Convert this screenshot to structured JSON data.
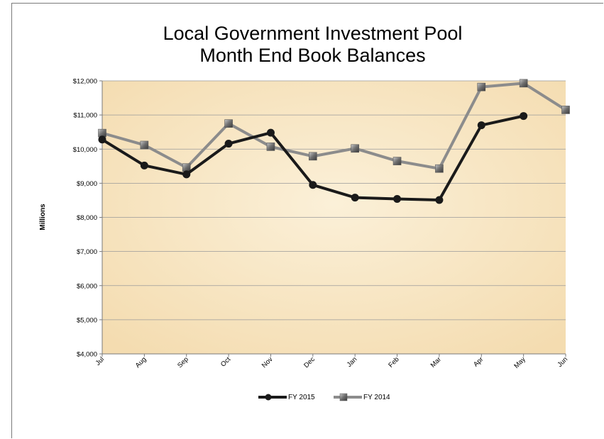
{
  "chart_data": {
    "type": "line",
    "title": "Local Government Investment Pool",
    "subtitle": "Month End Book Balances",
    "ylabel": "Millions",
    "xlabel": "",
    "categories": [
      "Jul",
      "Aug",
      "Sep",
      "Oct",
      "Nov",
      "Dec",
      "Jan",
      "Feb",
      "Mar",
      "Apr",
      "May",
      "Jun"
    ],
    "ylim": [
      4000,
      12000
    ],
    "yticks": [
      "$4,000",
      "$5,000",
      "$6,000",
      "$7,000",
      "$8,000",
      "$9,000",
      "$10,000",
      "$11,000",
      "$12,000"
    ],
    "ytick_values": [
      4000,
      5000,
      6000,
      7000,
      8000,
      9000,
      10000,
      11000,
      12000
    ],
    "grid": true,
    "legend_position": "bottom",
    "series": [
      {
        "name": "FY 2015",
        "color": "#1a1a1a",
        "marker": "circle",
        "values": [
          10280,
          9520,
          9260,
          10160,
          10480,
          8950,
          8580,
          8540,
          8510,
          10700,
          10970,
          null
        ]
      },
      {
        "name": "FY 2014",
        "color": "#8c8c8c",
        "marker": "square",
        "values": [
          10470,
          10120,
          9460,
          10750,
          10070,
          9790,
          10020,
          9650,
          9430,
          11820,
          11930,
          11150
        ]
      }
    ],
    "plot_background": "#f7e6c4"
  }
}
